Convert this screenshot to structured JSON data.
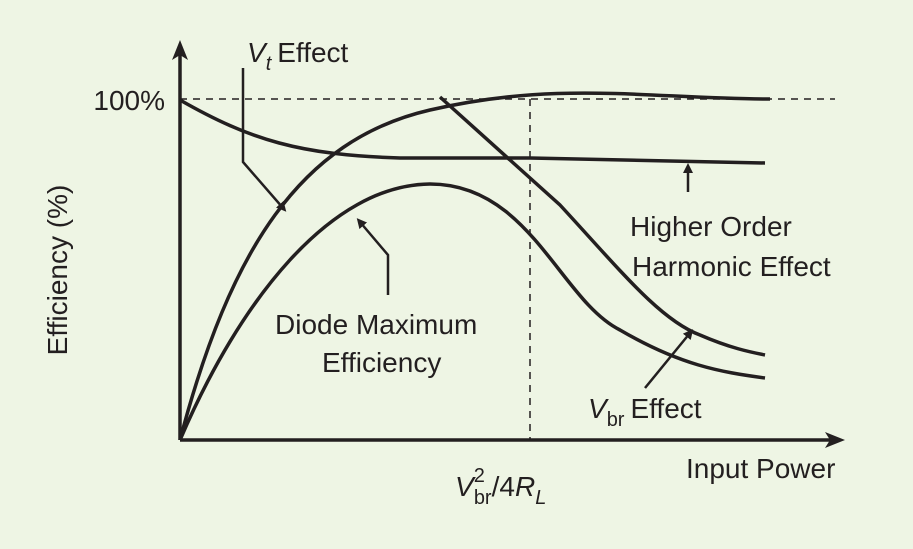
{
  "axes": {
    "y_label": "Efficiency (%)",
    "y_mark": "100%",
    "x_label": "Input Power",
    "x_mark": {
      "symbol": "V",
      "sub": "br",
      "sup": "2",
      "rest": "/4",
      "symbol2": "R",
      "sub2": "L"
    }
  },
  "labels": {
    "vt_effect": {
      "symbol": "V",
      "sub": "t",
      "text": "Effect"
    },
    "higher_order": [
      "Higher Order",
      "Harmonic Effect"
    ],
    "diode_max": [
      "Diode Maximum",
      "Efficiency"
    ],
    "vbr_effect": {
      "symbol": "V",
      "sub": "br",
      "text": "Effect"
    }
  }
}
